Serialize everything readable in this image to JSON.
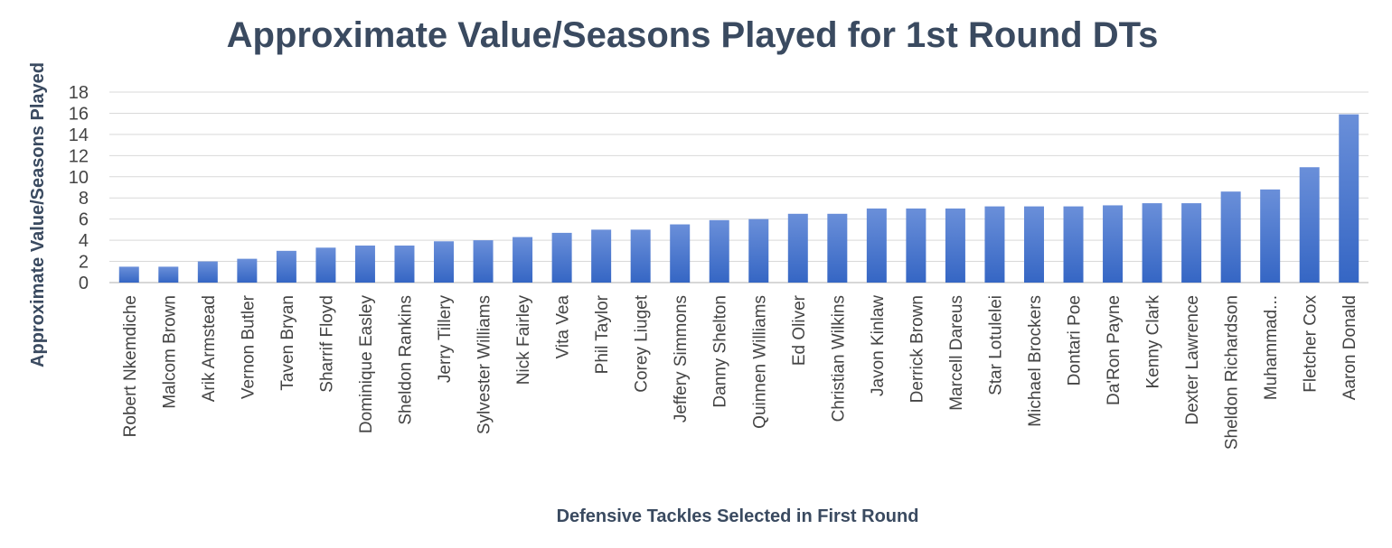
{
  "chart_data": {
    "type": "bar",
    "title": "Approximate Value/Seasons Played for 1st Round DTs",
    "xlabel": "Defensive Tackles Selected in First Round",
    "ylabel": "Approximate Value/Seasons Played",
    "ylim": [
      0,
      18
    ],
    "yticks": [
      "0",
      "2",
      "4",
      "6",
      "8",
      "10",
      "12",
      "14",
      "16",
      "18"
    ],
    "grid": true,
    "categories": [
      "Robert Nkemdiche",
      "Malcom Brown",
      "Arik Armstead",
      "Vernon Butler",
      "Taven Bryan",
      "Sharrif Floyd",
      "Dominique Easley",
      "Sheldon Rankins",
      "Jerry Tillery",
      "Sylvester Williams",
      "Nick Fairley",
      "Vita Vea",
      "Phil Taylor",
      "Corey Liuget",
      "Jeffery Simmons",
      "Danny Shelton",
      "Quinnen Williams",
      "Ed Oliver",
      "Christian Wilkins",
      "Javon Kinlaw",
      "Derrick Brown",
      "Marcell Dareus",
      "Star Lotulelei",
      "Michael Brockers",
      "Dontari Poe",
      "Da'Ron Payne",
      "Kenny Clark",
      "Dexter Lawrence",
      "Sheldon Richardson",
      "Muhammad...",
      "Fletcher Cox",
      "Aaron Donald"
    ],
    "values": [
      1.5,
      1.5,
      2.0,
      2.25,
      3.0,
      3.3,
      3.5,
      3.5,
      3.9,
      4.0,
      4.3,
      4.7,
      5.0,
      5.0,
      5.5,
      5.9,
      6.0,
      6.5,
      6.5,
      7.0,
      7.0,
      7.0,
      7.2,
      7.2,
      7.2,
      7.3,
      7.5,
      7.5,
      8.6,
      8.8,
      10.9,
      15.9
    ],
    "bar_color_top": "#6a8fd9",
    "bar_color_bottom": "#3566c4"
  }
}
